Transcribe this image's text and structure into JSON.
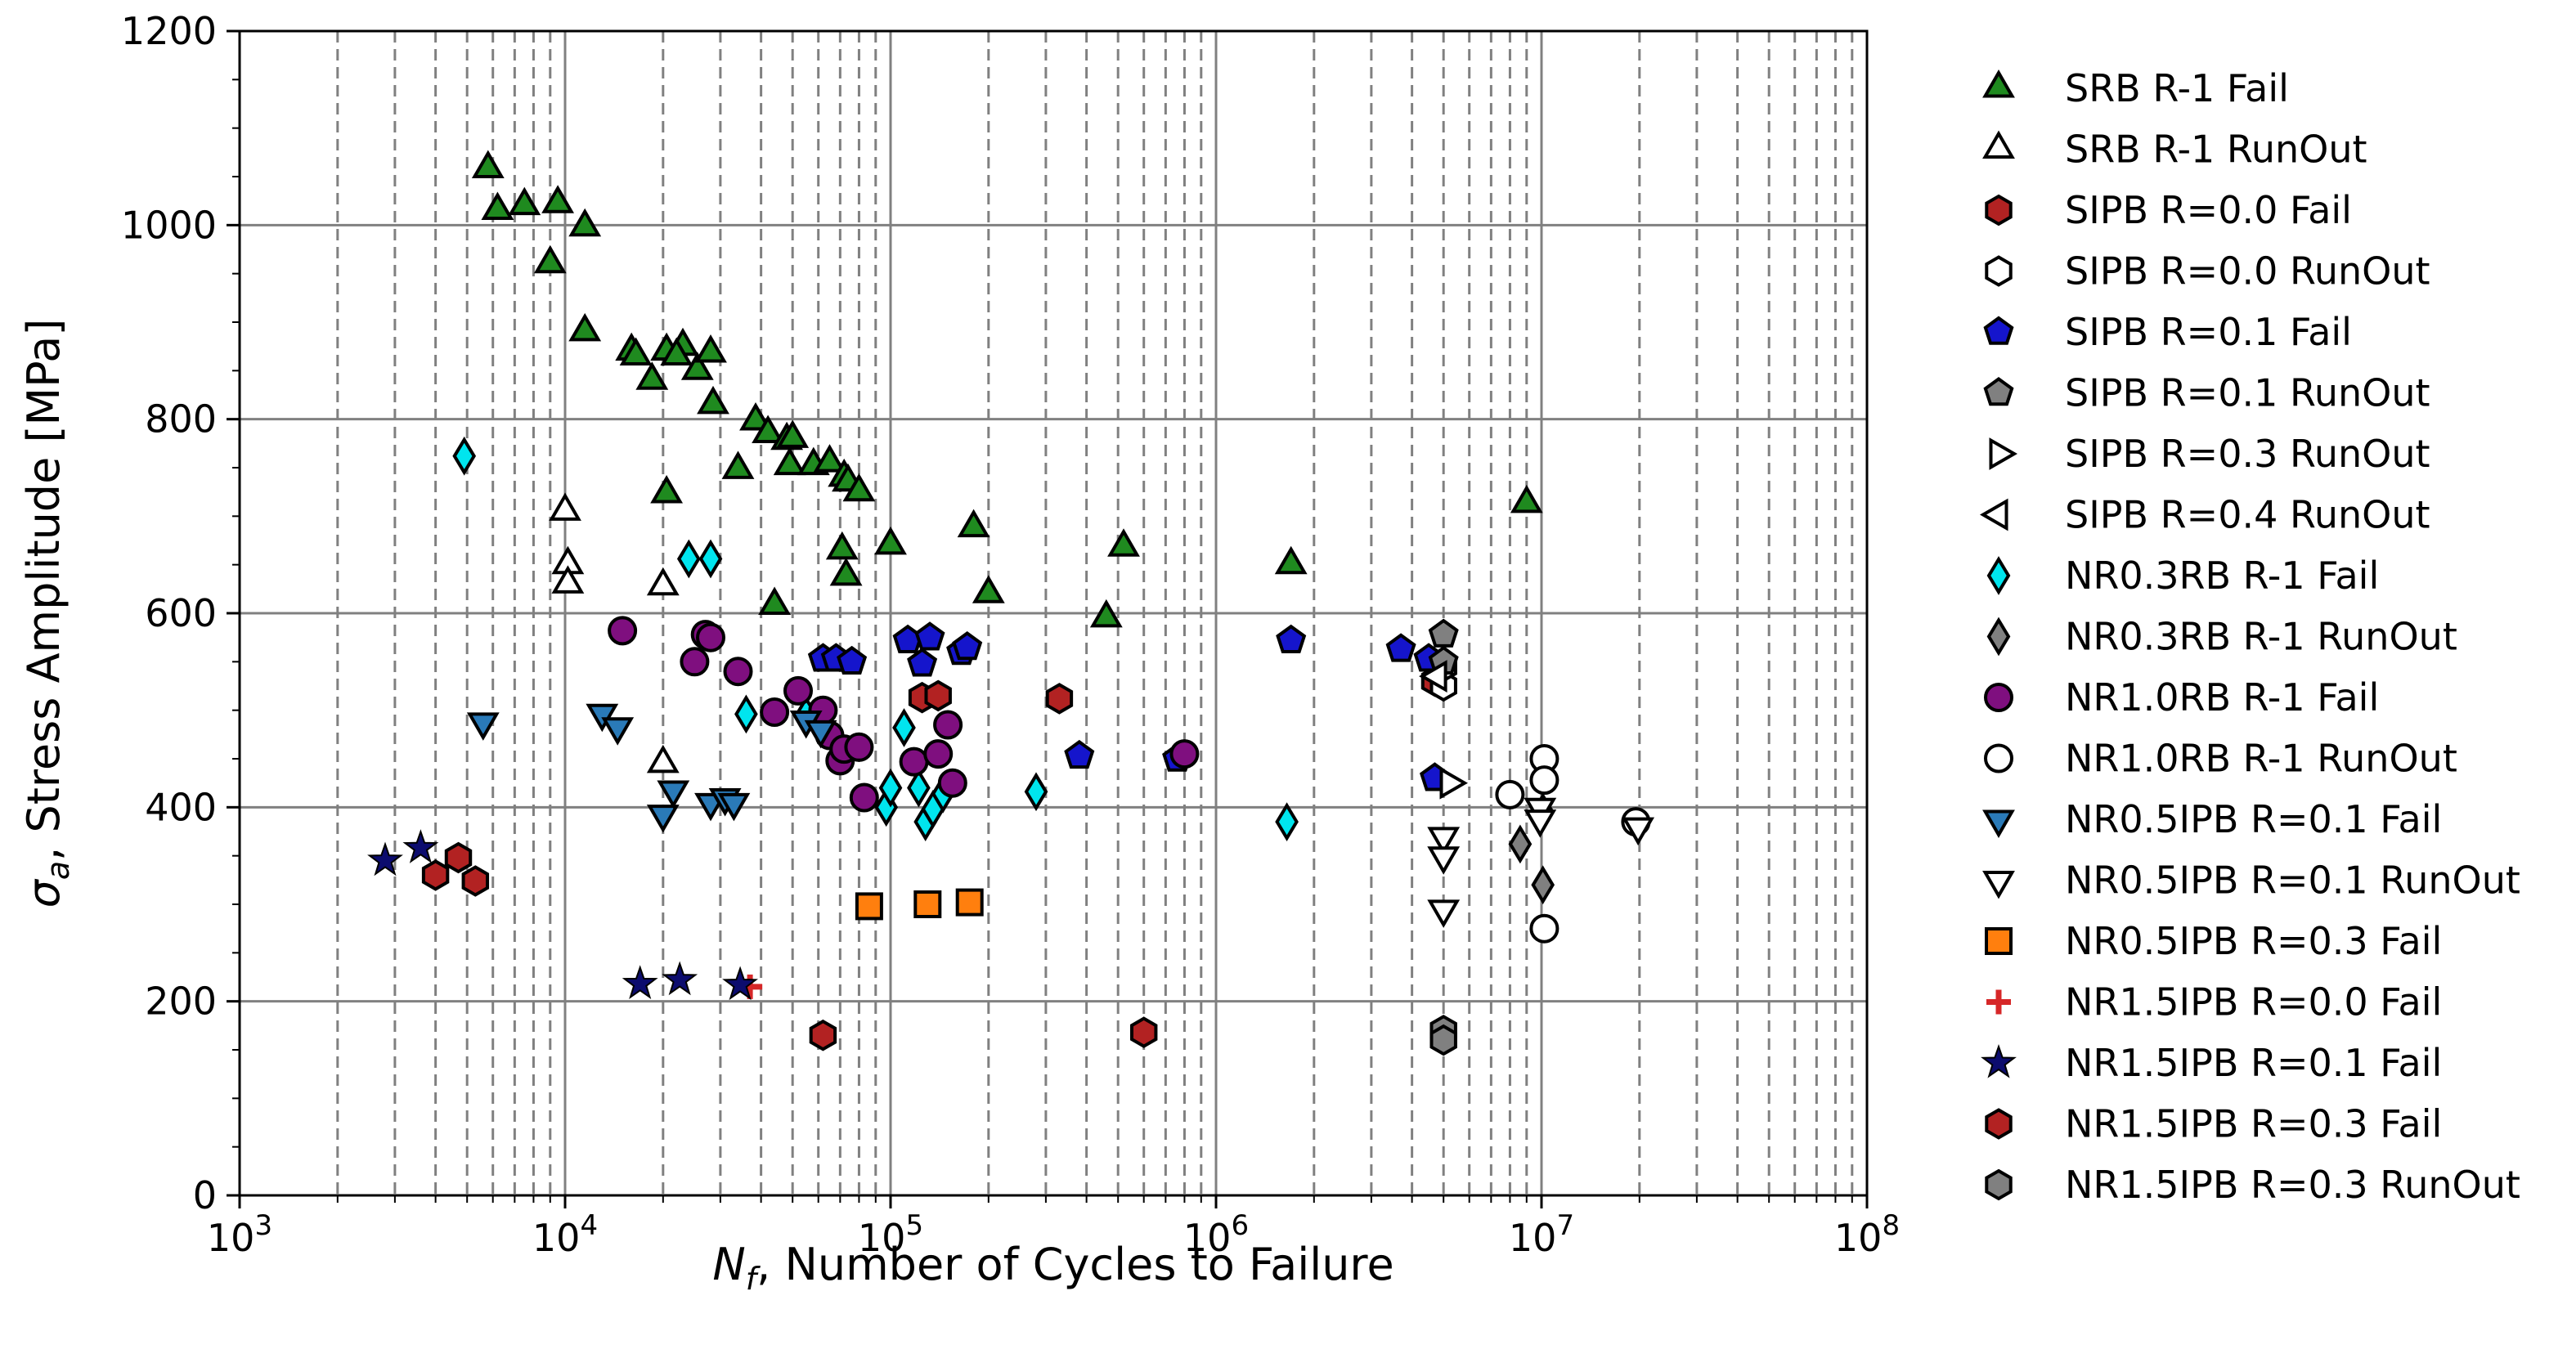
{
  "chart_data": {
    "type": "scatter",
    "title": "",
    "xlabel_main": "N",
    "xlabel_sub": "f",
    "xlabel_rest": ", Number of Cycles to Failure",
    "ylabel_main": "σ",
    "ylabel_sub": "a",
    "ylabel_rest": ", Stress Amplitude [MPa]",
    "x_scale": "log",
    "xlim": [
      1000,
      100000000
    ],
    "ylim": [
      0,
      1200
    ],
    "grid": true,
    "legend_position": "outside-right",
    "x_ticks": [
      {
        "base": "10",
        "exp": "3",
        "value": 1000
      },
      {
        "base": "10",
        "exp": "4",
        "value": 10000
      },
      {
        "base": "10",
        "exp": "5",
        "value": 100000
      },
      {
        "base": "10",
        "exp": "6",
        "value": 1000000
      },
      {
        "base": "10",
        "exp": "7",
        "value": 10000000
      },
      {
        "base": "10",
        "exp": "8",
        "value": 100000000
      }
    ],
    "y_ticks": [
      "0",
      "200",
      "400",
      "600",
      "800",
      "1000",
      "1200"
    ],
    "series": [
      {
        "name": "SRB R-1 Fail",
        "marker": "triangle-up",
        "fill": "#1f8a1f",
        "points": [
          [
            5800,
            1058
          ],
          [
            6200,
            1015
          ],
          [
            7500,
            1020
          ],
          [
            9500,
            1022
          ],
          [
            9000,
            960
          ],
          [
            11500,
            998
          ],
          [
            11500,
            890
          ],
          [
            16000,
            870
          ],
          [
            16500,
            865
          ],
          [
            18500,
            840
          ],
          [
            20500,
            870
          ],
          [
            23000,
            875
          ],
          [
            22000,
            865
          ],
          [
            25500,
            850
          ],
          [
            28000,
            868
          ],
          [
            28500,
            815
          ],
          [
            38500,
            798
          ],
          [
            42000,
            785
          ],
          [
            48000,
            778
          ],
          [
            50000,
            780
          ],
          [
            34000,
            748
          ],
          [
            49000,
            752
          ],
          [
            58000,
            752
          ],
          [
            65000,
            755
          ],
          [
            72000,
            740
          ],
          [
            74000,
            735
          ],
          [
            80000,
            725
          ],
          [
            20500,
            723
          ],
          [
            44000,
            608
          ],
          [
            71000,
            665
          ],
          [
            73000,
            638
          ],
          [
            100000,
            670
          ],
          [
            180000,
            688
          ],
          [
            200000,
            620
          ],
          [
            460000,
            595
          ],
          [
            520000,
            668
          ],
          [
            1700000,
            650
          ],
          [
            9000000,
            713
          ]
        ]
      },
      {
        "name": "SRB R-1 RunOut",
        "marker": "triangle-up",
        "fill": "#ffffff",
        "points": [
          [
            10000,
            705
          ],
          [
            10200,
            650
          ],
          [
            10200,
            630
          ],
          [
            20000,
            628
          ],
          [
            20000,
            445
          ]
        ]
      },
      {
        "name": "SIPB R=0.0 Fail",
        "marker": "hexagon",
        "fill": "#b22222",
        "points": [
          [
            125000,
            513
          ],
          [
            140000,
            515
          ],
          [
            330000,
            512
          ],
          [
            4700000,
            530
          ]
        ]
      },
      {
        "name": "SIPB R=0.0 RunOut",
        "marker": "hexagon",
        "fill": "#ffffff",
        "points": [
          [
            5000000,
            525
          ],
          [
            5000000,
            545
          ]
        ]
      },
      {
        "name": "SIPB R=0.1 Fail",
        "marker": "pentagon",
        "fill": "#1515cc",
        "points": [
          [
            62000,
            553
          ],
          [
            68000,
            553
          ],
          [
            76000,
            550
          ],
          [
            113000,
            572
          ],
          [
            125000,
            548
          ],
          [
            132000,
            575
          ],
          [
            165000,
            560
          ],
          [
            172000,
            565
          ],
          [
            380000,
            453
          ],
          [
            760000,
            450
          ],
          [
            1700000,
            572
          ],
          [
            3700000,
            563
          ],
          [
            4500000,
            553
          ],
          [
            4700000,
            430
          ]
        ]
      },
      {
        "name": "SIPB R=0.1 RunOut",
        "marker": "pentagon",
        "fill": "#808080",
        "points": [
          [
            5000000,
            550
          ],
          [
            5000000,
            578
          ]
        ]
      },
      {
        "name": "SIPB R=0.3 RunOut",
        "marker": "triangle-right",
        "fill": "#ffffff",
        "points": [
          [
            5200000,
            425
          ]
        ]
      },
      {
        "name": "SIPB R=0.4 RunOut",
        "marker": "triangle-left",
        "fill": "#ffffff",
        "points": [
          [
            4800000,
            535
          ]
        ]
      },
      {
        "name": "NR0.3RB R-1 Fail",
        "marker": "thin-diamond",
        "fill": "#00e5ee",
        "points": [
          [
            4900,
            762
          ],
          [
            24000,
            656
          ],
          [
            28000,
            656
          ],
          [
            36000,
            496
          ],
          [
            55000,
            495
          ],
          [
            97000,
            400
          ],
          [
            100000,
            420
          ],
          [
            110000,
            482
          ],
          [
            122000,
            420
          ],
          [
            128000,
            385
          ],
          [
            135000,
            398
          ],
          [
            145000,
            414
          ],
          [
            280000,
            416
          ],
          [
            1650000,
            385
          ]
        ]
      },
      {
        "name": "NR0.3RB R-1 RunOut",
        "marker": "thin-diamond",
        "fill": "#808080",
        "points": [
          [
            8600000,
            362
          ],
          [
            10100000,
            320
          ],
          [
            10100000,
            395
          ]
        ]
      },
      {
        "name": "NR1.0RB R-1 Fail",
        "marker": "circle",
        "fill": "#7f0f7f",
        "points": [
          [
            15000,
            582
          ],
          [
            25000,
            550
          ],
          [
            27000,
            578
          ],
          [
            28000,
            575
          ],
          [
            34000,
            540
          ],
          [
            44000,
            498
          ],
          [
            52000,
            520
          ],
          [
            62000,
            500
          ],
          [
            65000,
            474
          ],
          [
            70000,
            448
          ],
          [
            72000,
            460
          ],
          [
            80000,
            462
          ],
          [
            83000,
            410
          ],
          [
            118000,
            447
          ],
          [
            140000,
            455
          ],
          [
            150000,
            485
          ],
          [
            155000,
            425
          ],
          [
            800000,
            455
          ]
        ]
      },
      {
        "name": "NR1.0RB R-1 RunOut",
        "marker": "circle",
        "fill": "#ffffff",
        "points": [
          [
            8000000,
            413
          ],
          [
            10200000,
            450
          ],
          [
            10200000,
            428
          ],
          [
            10200000,
            275
          ],
          [
            19500000,
            385
          ]
        ]
      },
      {
        "name": "NR0.5IPB R=0.1 Fail",
        "marker": "triangle-down",
        "fill": "#2a7ab8",
        "points": [
          [
            5600,
            488
          ],
          [
            13000,
            497
          ],
          [
            14500,
            483
          ],
          [
            20000,
            393
          ],
          [
            21500,
            418
          ],
          [
            28000,
            405
          ],
          [
            31000,
            410
          ],
          [
            33000,
            405
          ],
          [
            55000,
            490
          ],
          [
            61000,
            480
          ]
        ]
      },
      {
        "name": "NR0.5IPB R=0.1 RunOut",
        "marker": "triangle-down",
        "fill": "#ffffff",
        "points": [
          [
            5000000,
            370
          ],
          [
            5000000,
            350
          ],
          [
            5000000,
            295
          ],
          [
            9900000,
            400
          ],
          [
            9900000,
            388
          ],
          [
            19800000,
            380
          ]
        ]
      },
      {
        "name": "NR0.5IPB R=0.3 Fail",
        "marker": "square",
        "fill": "#ff7f0e",
        "points": [
          [
            86000,
            298
          ],
          [
            130000,
            300
          ],
          [
            175000,
            302
          ]
        ]
      },
      {
        "name": "NR1.5IPB R=0.0 Fail",
        "marker": "plus",
        "fill": "#d62728",
        "points": [
          [
            37000,
            215
          ]
        ]
      },
      {
        "name": "NR1.5IPB R=0.1 Fail",
        "marker": "star",
        "fill": "#0c0c6e",
        "points": [
          [
            2800,
            345
          ],
          [
            3600,
            358
          ],
          [
            17000,
            218
          ],
          [
            22500,
            222
          ],
          [
            34500,
            217
          ]
        ]
      },
      {
        "name": "NR1.5IPB R=0.3 Fail",
        "marker": "hexagon",
        "fill": "#b22222",
        "points": [
          [
            4000,
            330
          ],
          [
            4700,
            348
          ],
          [
            5300,
            324
          ],
          [
            62000,
            165
          ],
          [
            600000,
            168
          ]
        ]
      },
      {
        "name": "NR1.5IPB R=0.3 RunOut",
        "marker": "hexagon",
        "fill": "#808080",
        "points": [
          [
            5000000,
            170
          ],
          [
            5000000,
            160
          ]
        ]
      }
    ]
  }
}
